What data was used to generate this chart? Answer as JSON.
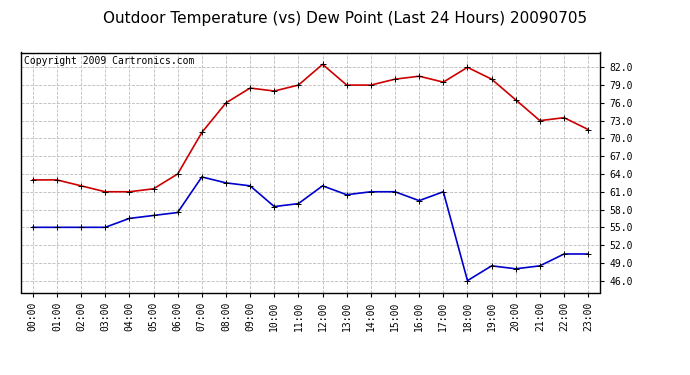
{
  "title": "Outdoor Temperature (vs) Dew Point (Last 24 Hours) 20090705",
  "copyright": "Copyright 2009 Cartronics.com",
  "hours": [
    "00:00",
    "01:00",
    "02:00",
    "03:00",
    "04:00",
    "05:00",
    "06:00",
    "07:00",
    "08:00",
    "09:00",
    "10:00",
    "11:00",
    "12:00",
    "13:00",
    "14:00",
    "15:00",
    "16:00",
    "17:00",
    "18:00",
    "19:00",
    "20:00",
    "21:00",
    "22:00",
    "23:00"
  ],
  "temp": [
    63.0,
    63.0,
    62.0,
    61.0,
    61.0,
    61.5,
    64.0,
    71.0,
    76.0,
    78.5,
    78.0,
    79.0,
    82.5,
    79.0,
    79.0,
    80.0,
    80.5,
    79.5,
    82.0,
    80.0,
    76.5,
    73.0,
    73.5,
    71.5
  ],
  "dew": [
    55.0,
    55.0,
    55.0,
    55.0,
    56.5,
    57.0,
    57.5,
    63.5,
    62.5,
    62.0,
    58.5,
    59.0,
    62.0,
    60.5,
    61.0,
    61.0,
    59.5,
    61.0,
    46.0,
    48.5,
    48.0,
    48.5,
    50.5,
    50.5
  ],
  "temp_color": "#cc0000",
  "dew_color": "#0000cc",
  "bg_color": "#ffffff",
  "grid_color": "#bbbbbb",
  "ylim_min": 44.0,
  "ylim_max": 84.5,
  "yticks": [
    46.0,
    49.0,
    52.0,
    55.0,
    58.0,
    61.0,
    64.0,
    67.0,
    70.0,
    73.0,
    76.0,
    79.0,
    82.0
  ],
  "title_fontsize": 11,
  "copyright_fontsize": 7,
  "tick_fontsize": 7,
  "marker": "+",
  "marker_size": 5,
  "linewidth": 1.2
}
